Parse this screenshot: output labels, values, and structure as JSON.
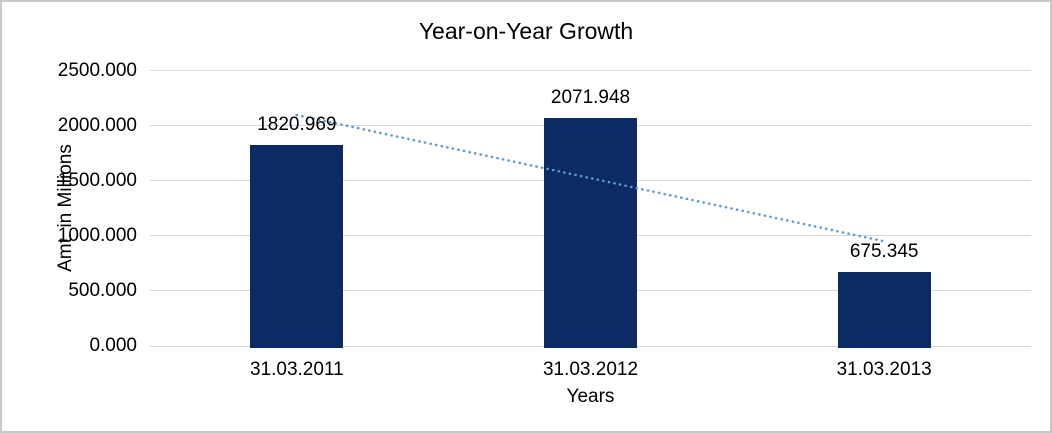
{
  "chart_data": {
    "type": "bar",
    "title": "Year-on-Year Growth",
    "xlabel": "Years",
    "ylabel": "Amt. in Millions",
    "categories": [
      "31.03.2011",
      "31.03.2012",
      "31.03.2013"
    ],
    "values": [
      1820.969,
      2071.948,
      675.345
    ],
    "data_labels": [
      "1820.969",
      "2071.948",
      "675.345"
    ],
    "ylim": [
      0,
      2500
    ],
    "ytick_values": [
      0,
      500,
      1000,
      1500,
      2000,
      2500
    ],
    "ytick_labels": [
      "0.000",
      "500.000",
      "1000.000",
      "1500.000",
      "2000.000",
      "2500.000"
    ],
    "grid": "horizontal",
    "legend": "none",
    "trendline": {
      "type": "linear",
      "style": "dotted",
      "start_value": 2096,
      "end_value": 950,
      "color": "#5B9BD5"
    },
    "colors": {
      "bar": "#0C2A63",
      "gridline": "#D9D9D9",
      "text": "#000000",
      "background": "#FFFFFF",
      "frame_border": "#C9C9C9"
    }
  }
}
